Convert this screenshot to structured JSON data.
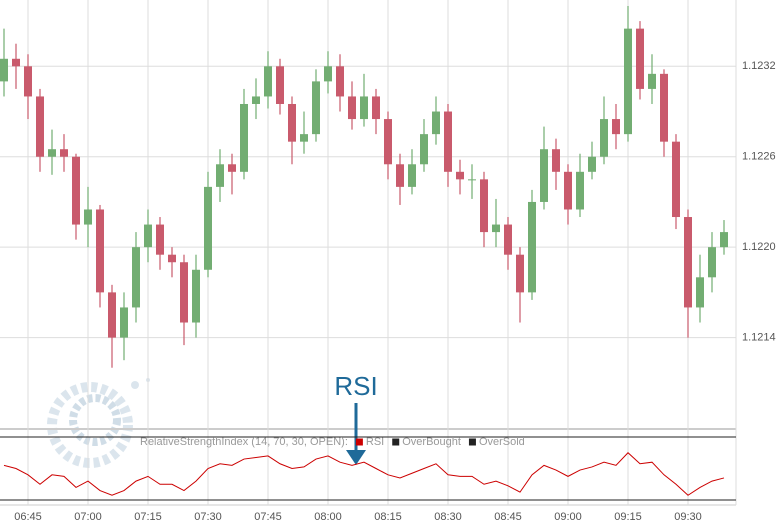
{
  "chart_data": [
    {
      "type": "candlestick",
      "x": [
        "06:39",
        "06:42",
        "06:45",
        "06:48",
        "06:51",
        "06:54",
        "06:57",
        "07:00",
        "07:03",
        "07:06",
        "07:09",
        "07:12",
        "07:15",
        "07:18",
        "07:21",
        "07:24",
        "07:27",
        "07:30",
        "07:33",
        "07:36",
        "07:39",
        "07:42",
        "07:45",
        "07:48",
        "07:51",
        "07:54",
        "07:57",
        "08:00",
        "08:03",
        "08:06",
        "08:09",
        "08:12",
        "08:15",
        "08:18",
        "08:21",
        "08:24",
        "08:27",
        "08:30",
        "08:33",
        "08:36",
        "08:39",
        "08:42",
        "08:45",
        "08:48",
        "08:51",
        "08:54",
        "08:57",
        "09:00",
        "09:03",
        "09:06",
        "09:09",
        "09:12",
        "09:15",
        "09:18",
        "09:21",
        "09:24",
        "09:27",
        "09:30",
        "09:33",
        "09:36",
        "09:39"
      ],
      "open": [
        1.1231,
        1.12325,
        1.1232,
        1.123,
        1.1226,
        1.12265,
        1.1226,
        1.12215,
        1.12225,
        1.1217,
        1.1214,
        1.1216,
        1.122,
        1.12215,
        1.12195,
        1.1219,
        1.1215,
        1.12185,
        1.1224,
        1.12255,
        1.1225,
        1.12295,
        1.123,
        1.1232,
        1.12295,
        1.1227,
        1.12275,
        1.1231,
        1.1232,
        1.123,
        1.12285,
        1.123,
        1.12285,
        1.12255,
        1.1224,
        1.12255,
        1.12275,
        1.1229,
        1.1225,
        1.12245,
        1.12245,
        1.1221,
        1.12215,
        1.12195,
        1.1217,
        1.1223,
        1.12265,
        1.1225,
        1.12225,
        1.1225,
        1.1226,
        1.12285,
        1.12275,
        1.12345,
        1.12305,
        1.12315,
        1.1227,
        1.1222,
        1.1216,
        1.1218,
        1.122
      ],
      "high": [
        1.12345,
        1.12335,
        1.12328,
        1.12305,
        1.12278,
        1.12275,
        1.12262,
        1.1224,
        1.12228,
        1.12175,
        1.1217,
        1.1221,
        1.12225,
        1.1222,
        1.122,
        1.12195,
        1.12195,
        1.1225,
        1.12265,
        1.12262,
        1.12305,
        1.12312,
        1.1233,
        1.12325,
        1.123,
        1.1229,
        1.12318,
        1.1233,
        1.12328,
        1.1231,
        1.12315,
        1.12305,
        1.1229,
        1.12262,
        1.12265,
        1.12285,
        1.123,
        1.12295,
        1.12258,
        1.12255,
        1.1225,
        1.12232,
        1.1222,
        1.122,
        1.12238,
        1.1228,
        1.12272,
        1.12255,
        1.12262,
        1.1227,
        1.123,
        1.12295,
        1.1236,
        1.1235,
        1.12328,
        1.12318,
        1.12275,
        1.12225,
        1.12195,
        1.1221,
        1.12218
      ],
      "low": [
        1.123,
        1.12305,
        1.12285,
        1.1225,
        1.12248,
        1.1225,
        1.12205,
        1.122,
        1.1216,
        1.1212,
        1.12125,
        1.1215,
        1.1219,
        1.12185,
        1.1218,
        1.12135,
        1.1214,
        1.1218,
        1.1223,
        1.12235,
        1.12245,
        1.12285,
        1.12292,
        1.12288,
        1.12255,
        1.12262,
        1.1227,
        1.12302,
        1.1229,
        1.12278,
        1.1228,
        1.12275,
        1.12245,
        1.12228,
        1.12235,
        1.1225,
        1.12268,
        1.1224,
        1.12235,
        1.12232,
        1.122,
        1.122,
        1.12185,
        1.1215,
        1.12165,
        1.12225,
        1.12238,
        1.12215,
        1.1222,
        1.12245,
        1.12255,
        1.12265,
        1.1227,
        1.12298,
        1.12295,
        1.1226,
        1.12212,
        1.1214,
        1.1215,
        1.1217,
        1.12195
      ],
      "close": [
        1.12325,
        1.1232,
        1.123,
        1.1226,
        1.12265,
        1.1226,
        1.12215,
        1.12225,
        1.1217,
        1.1214,
        1.1216,
        1.122,
        1.12215,
        1.12195,
        1.1219,
        1.1215,
        1.12185,
        1.1224,
        1.12255,
        1.1225,
        1.12295,
        1.123,
        1.1232,
        1.12295,
        1.1227,
        1.12275,
        1.1231,
        1.1232,
        1.123,
        1.12285,
        1.123,
        1.12285,
        1.12255,
        1.1224,
        1.12255,
        1.12275,
        1.1229,
        1.1225,
        1.12245,
        1.12245,
        1.1221,
        1.12215,
        1.12195,
        1.1217,
        1.1223,
        1.12265,
        1.1225,
        1.12225,
        1.1225,
        1.1226,
        1.12285,
        1.12275,
        1.12345,
        1.12305,
        1.12315,
        1.1227,
        1.1222,
        1.1216,
        1.1218,
        1.122,
        1.1221
      ],
      "up_color": "#72ad72",
      "down_color": "#c95a6c",
      "xlim": [
        "06:38",
        "09:42"
      ],
      "xticks": [
        "06:45",
        "07:00",
        "07:15",
        "07:30",
        "07:45",
        "08:00",
        "08:15",
        "08:30",
        "08:45",
        "09:00",
        "09:15",
        "09:30"
      ],
      "ylim": [
        1.12082,
        1.12364
      ],
      "yticks": [
        1.1214,
        {
          "value": 1.122,
          "label": "1.1220"
        },
        1.1226,
        1.1232
      ],
      "grid": true
    },
    {
      "type": "line",
      "title": "RelativeStrengthIndex (14, 70, 30, OPEN):",
      "series": [
        {
          "name": "RSI",
          "color": "#cc0000",
          "values": [
            52,
            50,
            46,
            40,
            46,
            45,
            38,
            42,
            36,
            33,
            36,
            42,
            45,
            40,
            40,
            36,
            42,
            50,
            53,
            52,
            56,
            57,
            58,
            53,
            50,
            51,
            56,
            58,
            54,
            52,
            54,
            50,
            46,
            44,
            47,
            50,
            53,
            46,
            45,
            45,
            40,
            42,
            39,
            35,
            46,
            52,
            49,
            45,
            49,
            51,
            54,
            52,
            60,
            53,
            54,
            46,
            40,
            33,
            38,
            42,
            44
          ]
        }
      ],
      "levels": [
        {
          "name": "OverBought",
          "value": 70,
          "color": "#222222"
        },
        {
          "name": "OverSold",
          "value": 30,
          "color": "#222222"
        }
      ],
      "ylim": [
        30,
        70
      ],
      "annotation": "RSI"
    }
  ]
}
